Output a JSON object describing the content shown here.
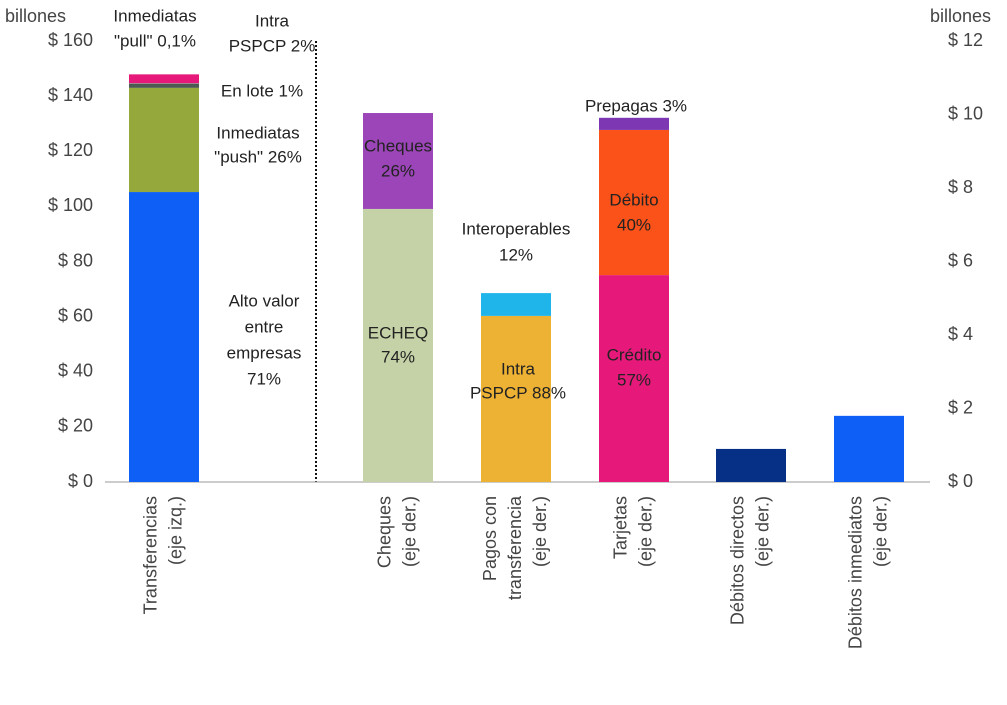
{
  "chart_data": {
    "type": "stacked-bar",
    "left_axis_label": "billones",
    "right_axis_label": "billones",
    "ylim": [
      0,
      160
    ],
    "yticks": [
      {
        "value": 0,
        "label": "$ 0"
      },
      {
        "value": 20,
        "label": "$ 20"
      },
      {
        "value": 40,
        "label": "$ 40"
      },
      {
        "value": 60,
        "label": "$ 60"
      },
      {
        "value": 80,
        "label": "$ 80"
      },
      {
        "value": 100,
        "label": "$ 100"
      },
      {
        "value": 120,
        "label": "$ 120"
      },
      {
        "value": 140,
        "label": "$ 140"
      },
      {
        "value": 160,
        "label": "$ 160"
      }
    ],
    "y2lim": [
      0,
      12
    ],
    "y2ticks": [
      {
        "value": 0,
        "label": "$ 0"
      },
      {
        "value": 2,
        "label": "$ 2"
      },
      {
        "value": 4,
        "label": "$ 4"
      },
      {
        "value": 6,
        "label": "$ 6"
      },
      {
        "value": 8,
        "label": "$ 8"
      },
      {
        "value": 10,
        "label": "$ 10"
      },
      {
        "value": 12,
        "label": "$ 12"
      }
    ],
    "bars": [
      {
        "category": [
          "Transferencias",
          "(eje izq.)"
        ],
        "axis": "y",
        "segments": [
          {
            "label": [
              "Alto valor",
              "entre",
              "empresas",
              "71%"
            ],
            "color": "#0d5ff5",
            "value": 105.2
          },
          {
            "label": [
              "Inmediatas",
              "\"push\" 26%"
            ],
            "color": "#95a83c",
            "value": 37.8
          },
          {
            "label": [
              "En lote 1%"
            ],
            "color": "#4d5a52",
            "value": 1.5
          },
          {
            "label": [
              "Inmediatas",
              "\"pull\" 0,1%"
            ],
            "color": "#7a7a7a",
            "value": 0.2
          },
          {
            "label": [
              "Intra",
              "PSPCP 2%"
            ],
            "color": "#e6197a",
            "value": 3.2
          }
        ]
      },
      {
        "category": [
          "Cheques",
          "(eje der.)"
        ],
        "axis": "y2",
        "segments": [
          {
            "label": [
              "ECHEQ",
              "74%"
            ],
            "color": "#c5d1a6",
            "value": 7.43
          },
          {
            "label": [
              "Cheques",
              "26%"
            ],
            "color": "#9b45b8",
            "value": 2.61
          }
        ]
      },
      {
        "category": [
          "Pagos con",
          "transferencia",
          "(eje der.)"
        ],
        "axis": "y2",
        "segments": [
          {
            "label": [
              "Intra",
              "PSPCP 88%"
            ],
            "color": "#edb234",
            "value": 4.52
          },
          {
            "label": [
              "Interoperables",
              "12%"
            ],
            "color": "#1fb4ea",
            "value": 0.62
          }
        ]
      },
      {
        "category": [
          "Tarjetas",
          "(eje der.)"
        ],
        "axis": "y2",
        "segments": [
          {
            "label": [
              "Crédito",
              "57%"
            ],
            "color": "#e6197a",
            "value": 5.63
          },
          {
            "label": [
              "Débito",
              "40%"
            ],
            "color": "#fa5219",
            "value": 3.95
          },
          {
            "label": [
              "Prepagas  3%"
            ],
            "color": "#7d37b3",
            "value": 0.33
          }
        ]
      },
      {
        "category": [
          "Débitos directos",
          "(eje der.)"
        ],
        "axis": "y2",
        "segments": [
          {
            "color": "#062f86",
            "value": 0.9
          }
        ]
      },
      {
        "category": [
          "Débitos inmediatos",
          "(eje der.)"
        ],
        "axis": "y2",
        "segments": [
          {
            "color": "#0d5ff5",
            "value": 1.8
          }
        ]
      }
    ]
  }
}
